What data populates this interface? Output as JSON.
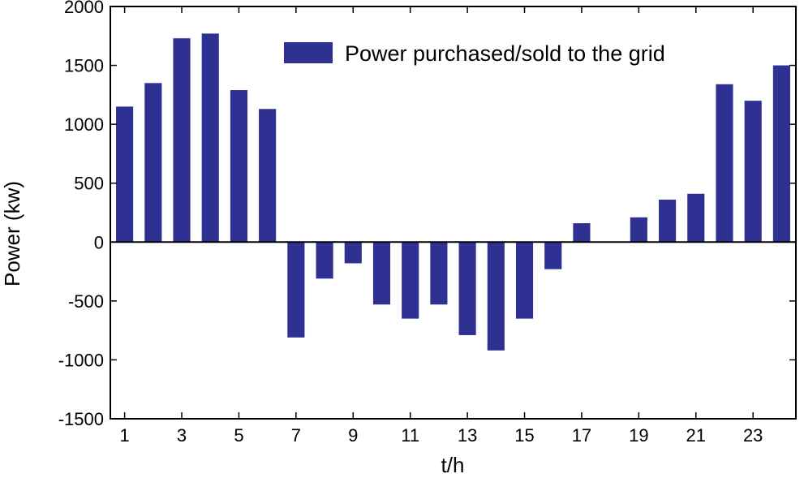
{
  "chart_data": {
    "type": "bar",
    "title": "",
    "xlabel": "t/h",
    "ylabel": "Power (kw)",
    "ylim": [
      -1500,
      2000
    ],
    "xlim": [
      0.5,
      24.5
    ],
    "yticks": [
      -1500,
      -1000,
      -500,
      0,
      500,
      1000,
      1500,
      2000
    ],
    "xticks": [
      1,
      3,
      5,
      7,
      9,
      11,
      13,
      15,
      17,
      19,
      21,
      23
    ],
    "grid": false,
    "legend_position": "top-right",
    "color": "#2e3192",
    "categories": [
      1,
      2,
      3,
      4,
      5,
      6,
      7,
      8,
      9,
      10,
      11,
      12,
      13,
      14,
      15,
      16,
      17,
      18,
      19,
      20,
      21,
      22,
      23,
      24
    ],
    "series": [
      {
        "name": "Power purchased/sold to the grid",
        "values": [
          1150,
          1350,
          1730,
          1770,
          1290,
          1130,
          -810,
          -310,
          -180,
          -530,
          -650,
          -530,
          -790,
          -920,
          -650,
          -230,
          160,
          0,
          210,
          360,
          410,
          1340,
          1200,
          1500
        ]
      }
    ]
  }
}
